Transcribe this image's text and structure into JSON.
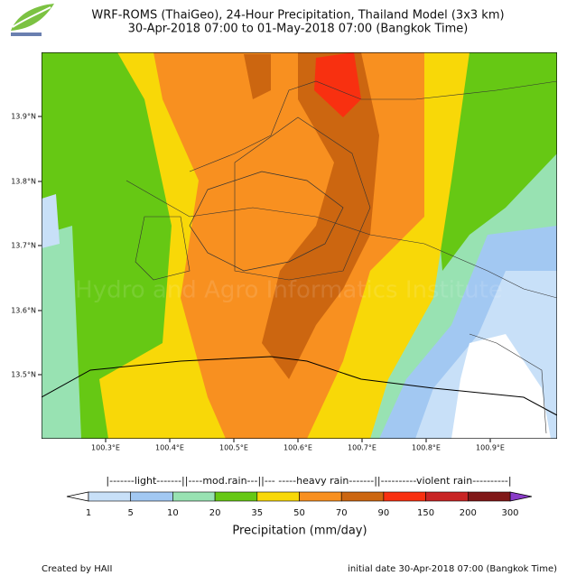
{
  "header": {
    "title": "WRF-ROMS (ThaiGeo), 24-Hour Precipitation, Thailand Model (3x3 km)",
    "subtitle": "30-Apr-2018 07:00 to 01-May-2018 07:00 (Bangkok Time)"
  },
  "map": {
    "lat_labels": [
      "13.9°N",
      "13.8°N",
      "13.7°N",
      "13.6°N",
      "13.5°N"
    ],
    "lon_labels": [
      "100.3°E",
      "100.4°E",
      "100.5°E",
      "100.6°E",
      "100.7°E",
      "100.8°E",
      "100.9°E"
    ],
    "watermark": "Hydro and Agro Informatics Institute"
  },
  "legend": {
    "groups": "|-------light-------||----mod.rain---||--- -----heavy rain-------||----------violent rain----------|",
    "ticks": [
      "1",
      "5",
      "10",
      "20",
      "35",
      "50",
      "70",
      "90",
      "150",
      "200",
      "300"
    ],
    "colors": [
      "#c8e0f8",
      "#a2c8f2",
      "#98e2b2",
      "#66c814",
      "#f8d808",
      "#f89020",
      "#cc6610",
      "#f83010",
      "#c82424",
      "#801818"
    ],
    "under_color": "#ffffff",
    "over_color": "#8a3cc8",
    "label": "Precipitation (mm/day)"
  },
  "footer": {
    "credit": "Created by HAII",
    "initial_date": "initial date 30-Apr-2018 07:00 (Bangkok Time)"
  }
}
